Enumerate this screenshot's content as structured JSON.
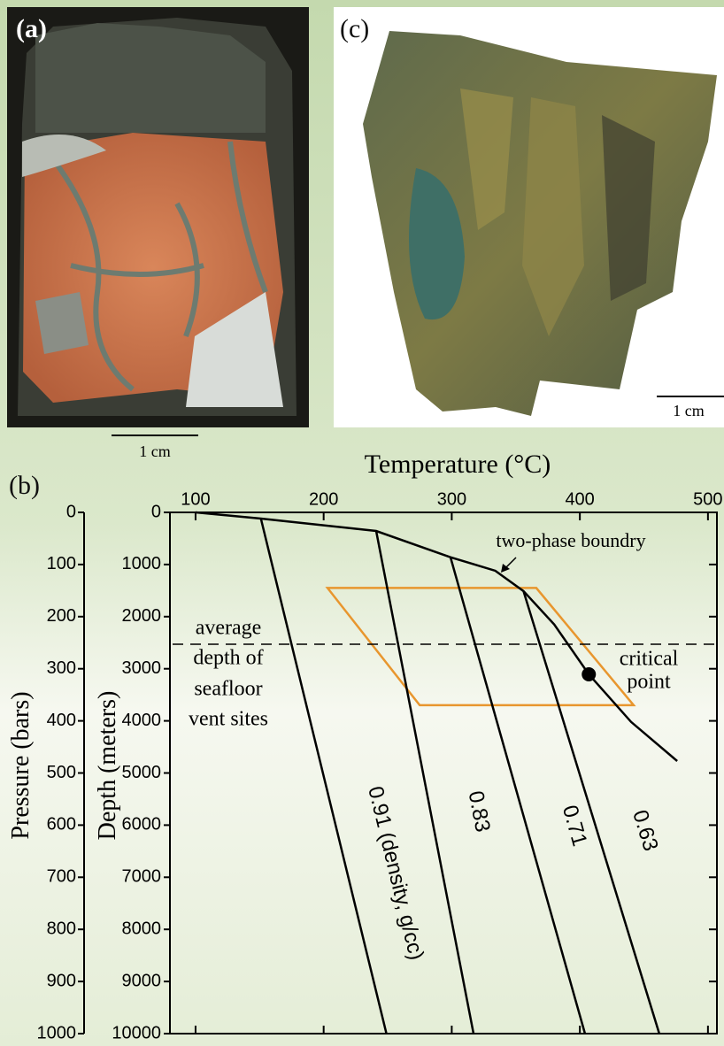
{
  "panels": {
    "a": "(a)",
    "b": "(b)",
    "c": "(c)",
    "scale_a": "1 cm",
    "scale_c": "1 cm"
  },
  "chart_data": {
    "type": "line",
    "x_title": "Temperature (°C)",
    "y_title": "Depth (meters)",
    "y2_title": "Pressure (bars)",
    "xlim": [
      80,
      507
    ],
    "xticks": [
      100,
      200,
      300,
      400,
      500
    ],
    "ylim": [
      0,
      10000
    ],
    "yticks": [
      0,
      1000,
      2000,
      3000,
      4000,
      5000,
      6000,
      7000,
      8000,
      9000,
      10000
    ],
    "y_reversed": true,
    "y2lim": [
      0,
      1000
    ],
    "y2ticks": [
      0,
      100,
      200,
      300,
      400,
      500,
      600,
      700,
      800,
      900,
      1000
    ],
    "series": [
      {
        "name": "two-phase boundry",
        "color": "#000000",
        "x": [
          100,
          151,
          241,
          299,
          334,
          356,
          380,
          407,
          440,
          476
        ],
        "values": [
          0,
          119,
          357,
          860,
          1120,
          1510,
          2150,
          3107,
          4020,
          4771
        ]
      },
      {
        "name": "0.91 (density, g/cc)",
        "color": "#000000",
        "x": [
          151,
          249
        ],
        "values": [
          119,
          10000
        ]
      },
      {
        "name": "0.83",
        "color": "#000000",
        "x": [
          241,
          317
        ],
        "values": [
          357,
          10000
        ]
      },
      {
        "name": "0.71",
        "color": "#000000",
        "x": [
          299,
          404
        ],
        "values": [
          860,
          10000
        ]
      },
      {
        "name": "0.63",
        "color": "#000000",
        "x": [
          356,
          462
        ],
        "values": [
          1510,
          10000
        ]
      }
    ],
    "critical_point": {
      "label": [
        "critical",
        "point"
      ],
      "x": 407,
      "y": 3107
    },
    "average_depth": {
      "label": [
        "average",
        "depth of",
        "seafloor",
        "vent sites"
      ],
      "value": 2530
    },
    "region": {
      "color": "#e8962e",
      "x": [
        203,
        366,
        442,
        275
      ],
      "values": [
        1450,
        1450,
        3700,
        3700
      ]
    }
  }
}
